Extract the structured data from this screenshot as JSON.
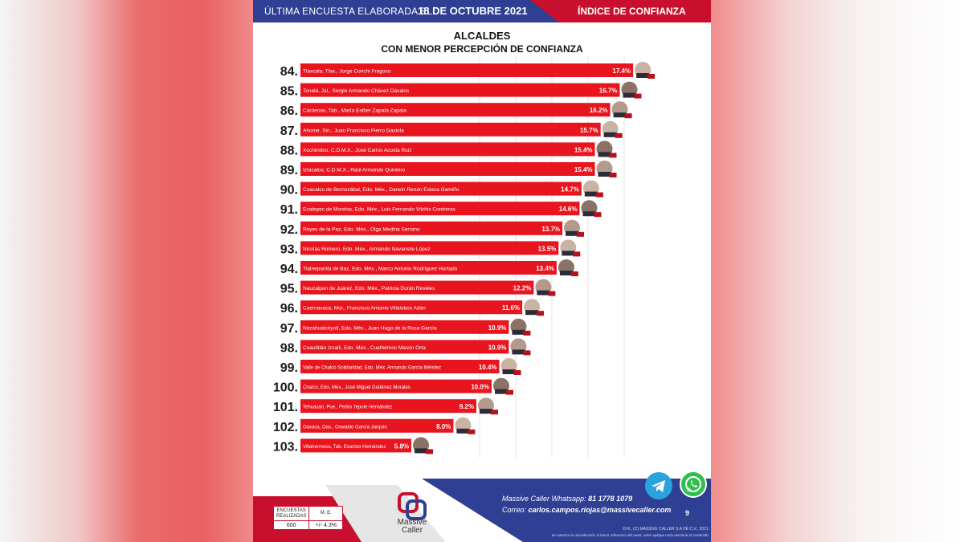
{
  "header": {
    "left_text": "ÚLTIMA ENCUESTA ELABORADA EL",
    "date": "18 DE OCTUBRE 2021",
    "right_text": "ÍNDICE DE CONFIANZA"
  },
  "title_line1": "ALCALDES",
  "title_line2": "CON MENOR PERCEPCIÓN DE CONFIANZA",
  "chart_data": {
    "type": "bar",
    "orientation": "horizontal",
    "bar_color": "#e8141e",
    "grid": true,
    "ranks": [
      "84.",
      "85.",
      "86.",
      "87.",
      "88.",
      "89.",
      "90.",
      "91.",
      "92.",
      "93.",
      "94.",
      "95.",
      "96.",
      "97.",
      "98.",
      "99.",
      "100.",
      "101.",
      "102.",
      "103."
    ],
    "categories": [
      "Tlaxcala, Tlax., Jorge Corichi Fragoso",
      "Tonalá, Jal., Sergio Armando Chávez Dávalos",
      "Cárdenas, Tab., María Esther Zapata Zapata",
      "Ahome, Sin., Juan Francisco Fierro Gaxiola",
      "Xochimilco, C.D.M.X., José Carlos Acosta Ruiz",
      "Iztacalco, C.D.M.X., Raúl Armando Quintero",
      "Coacalco de Berriozábal, Edo. Méx., Darwin Renán Eslava Gamiño",
      "Ecatepec de Morelos, Edo. Méx., Luis Fernando Vilchis Contreras",
      "Reyes de la Paz, Edo. Méx., Olga Medina Serrano",
      "Nicolás Romero, Edo. Méx., Armando Navarrete López",
      "Tlalnepantla de Baz, Edo. Méx., Marco Antonio Rodríguez Hurtado",
      "Naucalpan de Juárez, Edo. Méx., Patricia Durán Reveles",
      "Cuernavaca, Mor., Francisco Antonio Villalobos Adán",
      "Nezahualcóyotl, Edo. Méx., Juan Hugo de la Rosa García",
      "Cuautitlán Izcalli, Edo. Méx., Cuathémoc Masón Orta",
      "Valle de Chalco Solidaridad, Edo. Méx. Armando García Méndez",
      "Chalco, Edo. Méx., José Miguel Gutiérrez Morales",
      "Tehuacán, Pue., Pedro Tepole Hernández",
      "Oaxaca, Oax., Oswaldo García Jarquín",
      "Villahermosa, Tab. Evaristo Hernández"
    ],
    "values": [
      17.4,
      16.7,
      16.2,
      15.7,
      15.4,
      15.4,
      14.7,
      14.6,
      13.7,
      13.5,
      13.4,
      12.2,
      11.6,
      10.9,
      10.9,
      10.4,
      10.0,
      9.2,
      8.0,
      5.8
    ],
    "value_labels": [
      "17.4%",
      "16.7%",
      "16.2%",
      "15.7%",
      "15.4%",
      "15.4%",
      "14.7%",
      "14.6%",
      "13.7%",
      "13.5%",
      "13.4%",
      "12.2%",
      "11.6%",
      "10.9%",
      "10.9%",
      "10.4%",
      "10.0%",
      "9.2%",
      "8.0%",
      "5.8%"
    ],
    "xlim": [
      0,
      18
    ]
  },
  "footer": {
    "table_head_1": "ENCUESTAS REALIZADAS",
    "table_head_2": "M. E.",
    "table_val_1": "600",
    "table_val_2": "+/- 4.3%",
    "logo_line1": "Massive",
    "logo_line2": "Caller",
    "whatsapp_label": "Massive Caller Whatsapp:",
    "whatsapp_number": "81 1778 1079",
    "email_label": "Correo:",
    "email": "carlos.campos.riojas@massivecaller.com",
    "page": "9",
    "rights": "D.R., (C) MASSIVE CALLER S.A DE C.V., 2021.",
    "disclaimer": "Se autoriza la reproducción al hacer referencia del autor, salvo aplique veda electoral al contenido.",
    "telegram_icon": "telegram-icon",
    "whatsapp_icon": "whatsapp-icon"
  }
}
